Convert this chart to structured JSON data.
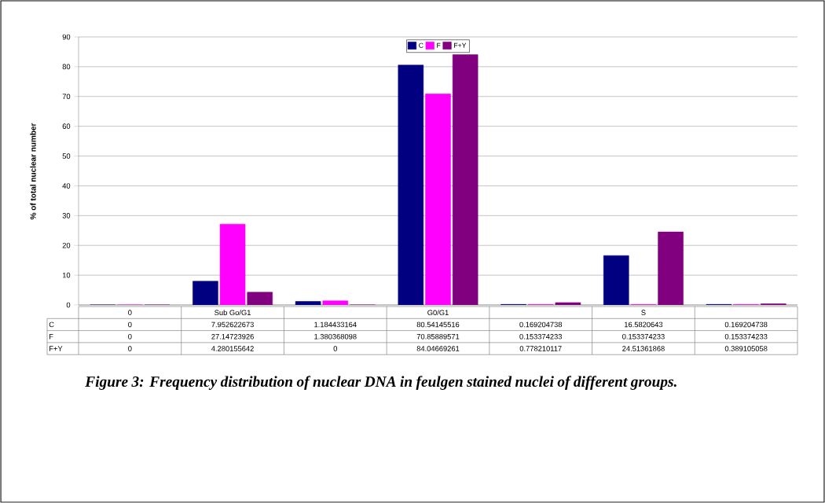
{
  "chart_data": {
    "type": "bar",
    "ylabel": "% of total nuclear number",
    "categories": [
      "0",
      "Sub Go/G1",
      null,
      "G0/G1",
      null,
      "S",
      null
    ],
    "series": [
      {
        "name": "C",
        "color": "#000080",
        "values": [
          0,
          7.952622673,
          1.184433164,
          80.54145516,
          0.169204738,
          16.5820643,
          0.169204738
        ]
      },
      {
        "name": "F",
        "color": "#ff00ff",
        "values": [
          0,
          27.14723926,
          1.380368098,
          70.85889571,
          0.153374233,
          0.153374233,
          0.153374233
        ]
      },
      {
        "name": "F+Y",
        "color": "#800080",
        "values": [
          0,
          4.280155642,
          0,
          84.04669261,
          0.778210117,
          24.51361868,
          0.389105058
        ]
      }
    ],
    "ylim": [
      0,
      90
    ],
    "yticks": [
      0,
      10,
      20,
      30,
      40,
      50,
      60,
      70,
      80,
      90
    ],
    "grid": "y",
    "legend": "top",
    "data_labels": true,
    "annotations": [
      "Figure 3: Frequency distribution of nuclear DNA in feulgen stained nuclei of different groups."
    ]
  }
}
